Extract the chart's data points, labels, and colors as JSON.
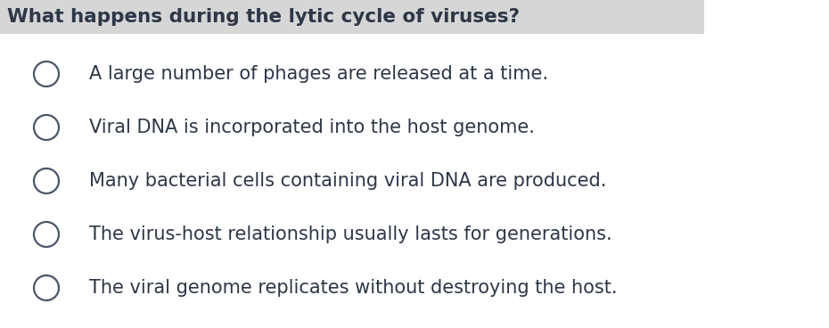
{
  "question": "What happens during the lytic cycle of viruses?",
  "question_bg_color": "#d6d6d6",
  "question_font_size": 15.5,
  "question_font_weight": "bold",
  "question_color": "#2d3748",
  "options": [
    "A large number of phages are released at a time.",
    "Viral DNA is incorporated into the host genome.",
    "Many bacterial cells containing viral DNA are produced.",
    "The virus-host relationship usually lasts for generations.",
    "The viral genome replicates without destroying the host."
  ],
  "option_font_size": 15,
  "option_color": "#2d3748",
  "bg_color": "#ffffff",
  "circle_edge_color": "#4a5568",
  "circle_linewidth": 1.6
}
